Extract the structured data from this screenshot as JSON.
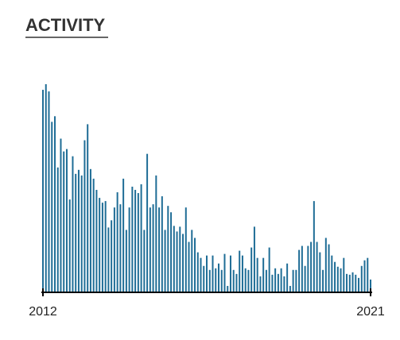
{
  "chart_data": {
    "type": "bar",
    "title": "ACTIVITY",
    "color": "#1f6d96",
    "categories": [
      "2012",
      null,
      null,
      null,
      null,
      null,
      null,
      null,
      null,
      null,
      null,
      null,
      null,
      null,
      null,
      null,
      null,
      null,
      null,
      null,
      null,
      null,
      null,
      null,
      null,
      null,
      null,
      null,
      null,
      null,
      null,
      null,
      null,
      null,
      null,
      null,
      null,
      null,
      null,
      null,
      null,
      null,
      null,
      null,
      null,
      null,
      null,
      null,
      null,
      null,
      null,
      null,
      null,
      null,
      null,
      null,
      null,
      null,
      null,
      null,
      null,
      null,
      null,
      null,
      null,
      null,
      null,
      null,
      null,
      null,
      null,
      null,
      null,
      null,
      null,
      null,
      null,
      null,
      null,
      null,
      null,
      null,
      null,
      null,
      null,
      null,
      null,
      null,
      null,
      null,
      null,
      null,
      null,
      null,
      null,
      null,
      null,
      null,
      null,
      null,
      null,
      null,
      null,
      null,
      null,
      null,
      null,
      null,
      null,
      null,
      "2021"
    ],
    "values": [
      253,
      260,
      251,
      213,
      220,
      156,
      192,
      176,
      179,
      116,
      170,
      148,
      153,
      146,
      190,
      210,
      154,
      142,
      128,
      118,
      112,
      114,
      81,
      90,
      106,
      125,
      110,
      142,
      78,
      106,
      132,
      128,
      124,
      135,
      78,
      173,
      106,
      110,
      146,
      106,
      120,
      78,
      108,
      100,
      83,
      76,
      82,
      73,
      106,
      63,
      78,
      68,
      50,
      43,
      33,
      46,
      28,
      46,
      30,
      36,
      28,
      48,
      8,
      46,
      28,
      23,
      52,
      46,
      30,
      28,
      56,
      82,
      43,
      20,
      43,
      28,
      56,
      22,
      30,
      23,
      30,
      20,
      36,
      8,
      28,
      28,
      53,
      58,
      33,
      58,
      63,
      114,
      63,
      50,
      28,
      68,
      60,
      46,
      38,
      32,
      30,
      43,
      23,
      22,
      25,
      22,
      18,
      33,
      40,
      43,
      16
    ]
  }
}
